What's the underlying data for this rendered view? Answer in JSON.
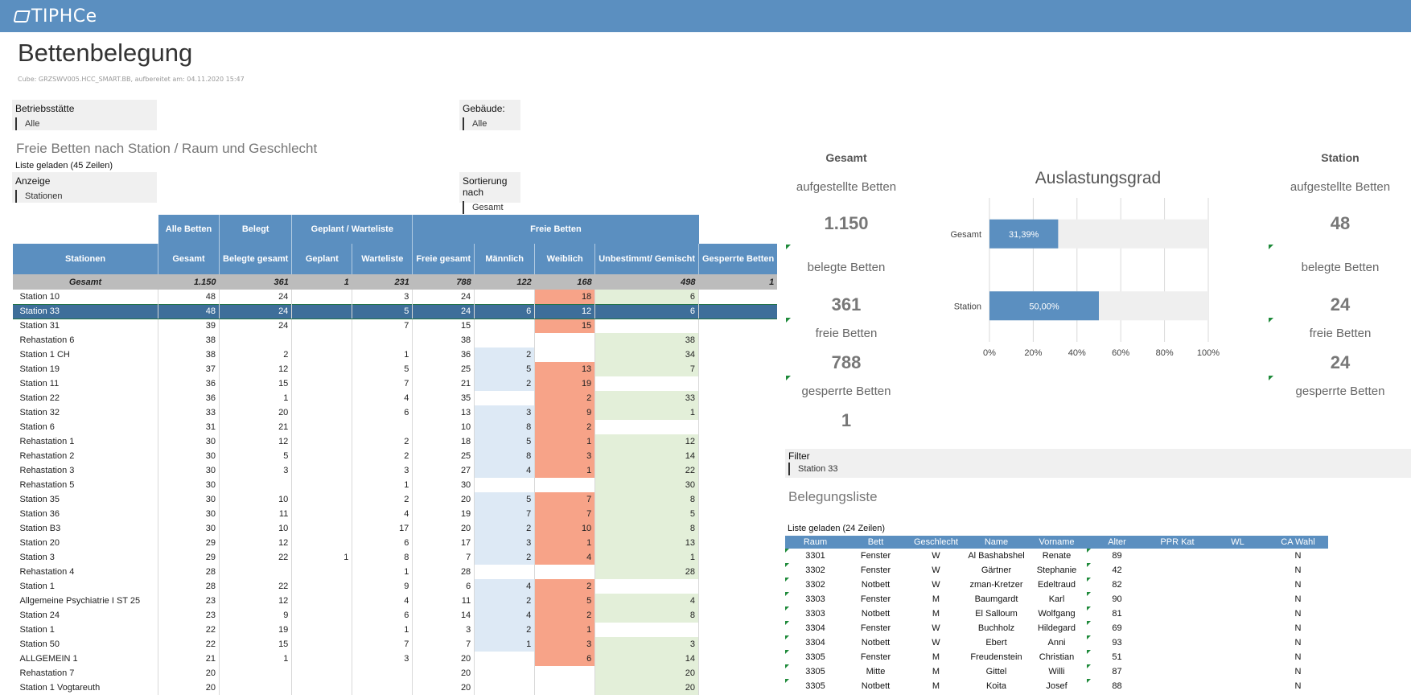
{
  "app": {
    "logo": "TIPHCe"
  },
  "page": {
    "title": "Bettenbelegung",
    "cube_info": "Cube: GRZSWV005.HCC_SMART.BB, aufbereitet am: 04.11.2020 15:47"
  },
  "filters": {
    "betriebsstaette": {
      "label": "Betriebsstätte",
      "value": "Alle"
    },
    "gebaeude": {
      "label": "Gebäude:",
      "value": "Alle"
    },
    "anzeige": {
      "label": "Anzeige",
      "value": "Stationen"
    },
    "sortierung": {
      "label": "Sortierung nach",
      "value": "Gesamt"
    }
  },
  "freie_betten": {
    "title": "Freie Betten nach Station / Raum und Geschlecht",
    "status": "Liste geladen (45 Zeilen)",
    "group_headers": [
      "Alle Betten",
      "Belegt",
      "Geplant / Warteliste",
      "Freie Betten"
    ],
    "columns": [
      "Stationen",
      "Gesamt",
      "Belegte gesamt",
      "Geplant",
      "Warteliste",
      "Freie gesamt",
      "Männlich",
      "Weiblich",
      "Unbestimmt/ Gemischt",
      "Gesperrte Betten"
    ],
    "total": [
      "Gesamt",
      "1.150",
      "361",
      "1",
      "231",
      "788",
      "122",
      "168",
      "498",
      "1"
    ],
    "rows": [
      [
        "Station 10",
        "48",
        "24",
        "",
        "3",
        "24",
        "",
        "18",
        "6",
        ""
      ],
      [
        "Station 33",
        "48",
        "24",
        "",
        "5",
        "24",
        "6",
        "12",
        "6",
        ""
      ],
      [
        "Station 31",
        "39",
        "24",
        "",
        "7",
        "15",
        "",
        "15",
        "",
        ""
      ],
      [
        "Rehastation 6",
        "38",
        "",
        "",
        "",
        "38",
        "",
        "",
        "38",
        ""
      ],
      [
        "Station 1 CH",
        "38",
        "2",
        "",
        "1",
        "36",
        "2",
        "",
        "34",
        ""
      ],
      [
        "Station 19",
        "37",
        "12",
        "",
        "5",
        "25",
        "5",
        "13",
        "7",
        ""
      ],
      [
        "Station 11",
        "36",
        "15",
        "",
        "7",
        "21",
        "2",
        "19",
        "",
        ""
      ],
      [
        "Station 22",
        "36",
        "1",
        "",
        "4",
        "35",
        "",
        "2",
        "33",
        ""
      ],
      [
        "Station 32",
        "33",
        "20",
        "",
        "6",
        "13",
        "3",
        "9",
        "1",
        ""
      ],
      [
        "Station 6",
        "31",
        "21",
        "",
        "",
        "10",
        "8",
        "2",
        "",
        ""
      ],
      [
        "Rehastation 1",
        "30",
        "12",
        "",
        "2",
        "18",
        "5",
        "1",
        "12",
        ""
      ],
      [
        "Rehastation 2",
        "30",
        "5",
        "",
        "2",
        "25",
        "8",
        "3",
        "14",
        ""
      ],
      [
        "Rehastation 3",
        "30",
        "3",
        "",
        "3",
        "27",
        "4",
        "1",
        "22",
        ""
      ],
      [
        "Rehastation 5",
        "30",
        "",
        "",
        "1",
        "30",
        "",
        "",
        "30",
        ""
      ],
      [
        "Station 35",
        "30",
        "10",
        "",
        "2",
        "20",
        "5",
        "7",
        "8",
        ""
      ],
      [
        "Station 36",
        "30",
        "11",
        "",
        "4",
        "19",
        "7",
        "7",
        "5",
        ""
      ],
      [
        "Station B3",
        "30",
        "10",
        "",
        "17",
        "20",
        "2",
        "10",
        "8",
        ""
      ],
      [
        "Station 20",
        "29",
        "12",
        "",
        "6",
        "17",
        "3",
        "1",
        "13",
        ""
      ],
      [
        "Station 3",
        "29",
        "22",
        "1",
        "8",
        "7",
        "2",
        "4",
        "1",
        ""
      ],
      [
        "Rehastation 4",
        "28",
        "",
        "",
        "1",
        "28",
        "",
        "",
        "28",
        ""
      ],
      [
        "Station 1",
        "28",
        "22",
        "",
        "9",
        "6",
        "4",
        "2",
        "",
        ""
      ],
      [
        "Allgemeine Psychiatrie I ST 25",
        "23",
        "12",
        "",
        "4",
        "11",
        "2",
        "5",
        "4",
        ""
      ],
      [
        "Station 24",
        "23",
        "9",
        "",
        "6",
        "14",
        "4",
        "2",
        "8",
        ""
      ],
      [
        "Station 1",
        "22",
        "19",
        "",
        "1",
        "3",
        "2",
        "1",
        "",
        ""
      ],
      [
        "Station 50",
        "22",
        "15",
        "",
        "7",
        "7",
        "1",
        "3",
        "3",
        ""
      ],
      [
        "ALLGEMEIN 1",
        "21",
        "1",
        "",
        "3",
        "20",
        "",
        "6",
        "14",
        ""
      ],
      [
        "Rehastation 7",
        "20",
        "",
        "",
        "",
        "20",
        "",
        "",
        "20",
        ""
      ],
      [
        "Station 1 Vogtareuth",
        "20",
        "",
        "",
        "",
        "20",
        "",
        "",
        "20",
        ""
      ]
    ]
  },
  "kpi": {
    "gesamt": {
      "head": "Gesamt",
      "aufgestellt_label": "aufgestellte Betten",
      "aufgestellt": "1.150",
      "belegt_label": "belegte Betten",
      "belegt": "361",
      "frei_label": "freie Betten",
      "frei": "788",
      "gesperrt_label": "gesperrte Betten",
      "gesperrt": "1"
    },
    "station": {
      "head": "Station",
      "aufgestellt_label": "aufgestellte Betten",
      "aufgestellt": "48",
      "belegt_label": "belegte Betten",
      "belegt": "24",
      "frei_label": "freie Betten",
      "frei": "24",
      "gesperrt_label": "gesperrte Betten"
    }
  },
  "chart_data": {
    "type": "bar",
    "orientation": "horizontal",
    "title": "Auslastungsgrad",
    "categories": [
      "Gesamt",
      "Station"
    ],
    "values": [
      31.39,
      50.0
    ],
    "value_labels": [
      "31,39%",
      "50,00%"
    ],
    "xlim": [
      0,
      100
    ],
    "xticks": [
      "0%",
      "20%",
      "40%",
      "60%",
      "80%",
      "100%"
    ],
    "bar_color": "#5b8fc0",
    "track_color": "#efefef",
    "grid": true
  },
  "filter_panel": {
    "label": "Filter",
    "value": "Station 33"
  },
  "belegungsliste": {
    "title": "Belegungsliste",
    "status": "Liste geladen (24 Zeilen)",
    "columns": [
      "Raum",
      "Bett",
      "Geschlecht",
      "Name",
      "Vorname",
      "Alter",
      "PPR Kat",
      "WL",
      "CA Wahl"
    ],
    "rows": [
      [
        "3301",
        "Fenster",
        "W",
        "Al Bashabshel",
        "Renate",
        "89",
        "",
        "",
        "N"
      ],
      [
        "3302",
        "Fenster",
        "W",
        "Gärtner",
        "Stephanie",
        "42",
        "",
        "",
        "N"
      ],
      [
        "3302",
        "Notbett",
        "W",
        "zman-Kretzer",
        "Edeltraud",
        "82",
        "",
        "",
        "N"
      ],
      [
        "3303",
        "Fenster",
        "M",
        "Baumgardt",
        "Karl",
        "90",
        "",
        "",
        "N"
      ],
      [
        "3303",
        "Notbett",
        "M",
        "El Salloum",
        "Wolfgang",
        "81",
        "",
        "",
        "N"
      ],
      [
        "3304",
        "Fenster",
        "W",
        "Buchholz",
        "Hildegard",
        "69",
        "",
        "",
        "N"
      ],
      [
        "3304",
        "Notbett",
        "W",
        "Ebert",
        "Anni",
        "93",
        "",
        "",
        "N"
      ],
      [
        "3305",
        "Fenster",
        "M",
        "Freudenstein",
        "Christian",
        "51",
        "",
        "",
        "N"
      ],
      [
        "3305",
        "Mitte",
        "M",
        "Gittel",
        "Willi",
        "87",
        "",
        "",
        "N"
      ],
      [
        "3305",
        "Notbett",
        "M",
        "Koita",
        "Josef",
        "88",
        "",
        "",
        "N"
      ]
    ]
  }
}
